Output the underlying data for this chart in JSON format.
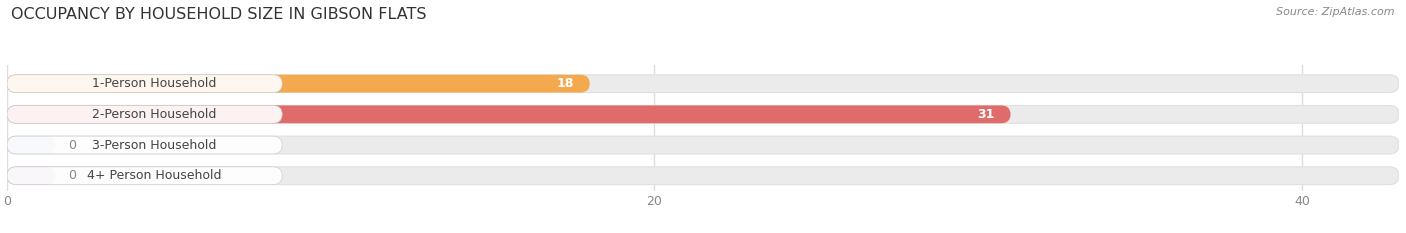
{
  "title": "OCCUPANCY BY HOUSEHOLD SIZE IN GIBSON FLATS",
  "source": "Source: ZipAtlas.com",
  "categories": [
    "1-Person Household",
    "2-Person Household",
    "3-Person Household",
    "4+ Person Household"
  ],
  "values": [
    18,
    31,
    0,
    0
  ],
  "bar_colors": [
    "#f5a94e",
    "#e06b6b",
    "#a8c0e8",
    "#c8a8d8"
  ],
  "background_color": "#ffffff",
  "bar_bg_color": "#ebebeb",
  "xlim_max": 43,
  "label_color_light": "#ffffff",
  "label_color_dark": "#888888",
  "title_fontsize": 11.5,
  "tick_fontsize": 9,
  "bar_label_fontsize": 9,
  "category_fontsize": 9,
  "grid_color": "#dddddd",
  "zero_bar_width": 1.5
}
